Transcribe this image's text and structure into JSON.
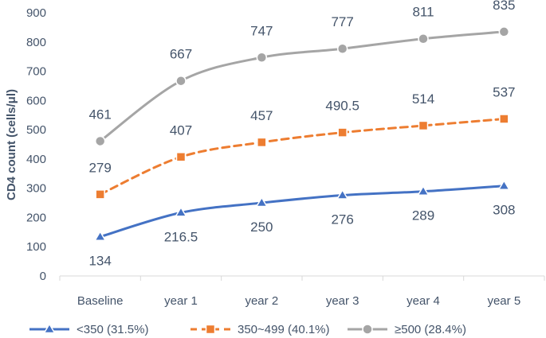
{
  "chart_data": {
    "type": "line",
    "ylabel": "CD4 count (cells/μl)",
    "xlabel": "",
    "categories": [
      "Baseline",
      "year 1",
      "year 2",
      "year 3",
      "year 4",
      "year 5"
    ],
    "ylim": [
      0,
      900
    ],
    "yticks": [
      0,
      100,
      200,
      300,
      400,
      500,
      600,
      700,
      800,
      900
    ],
    "grid": false,
    "legend_position": "bottom",
    "series": [
      {
        "name": "<350  (31.5%)",
        "values": [
          134,
          216.5,
          250,
          276,
          289,
          308
        ],
        "labels": [
          "134",
          "216.5",
          "250",
          "276",
          "289",
          "308"
        ],
        "color": "#4472C4",
        "marker": "triangle",
        "dash": "solid",
        "label_position": "below"
      },
      {
        "name": "350~499  (40.1%)",
        "values": [
          279,
          407,
          457,
          490.5,
          514,
          537
        ],
        "labels": [
          "279",
          "407",
          "457",
          "490.5",
          "514",
          "537"
        ],
        "color": "#ED7D31",
        "marker": "square",
        "dash": "dashed",
        "label_position": "above"
      },
      {
        "name": "≥500 (28.4%)",
        "values": [
          461,
          667,
          747,
          777,
          811,
          835
        ],
        "labels": [
          "461",
          "667",
          "747",
          "777",
          "811",
          "835"
        ],
        "color": "#A5A5A5",
        "marker": "circle",
        "dash": "solid",
        "label_position": "above"
      }
    ]
  }
}
